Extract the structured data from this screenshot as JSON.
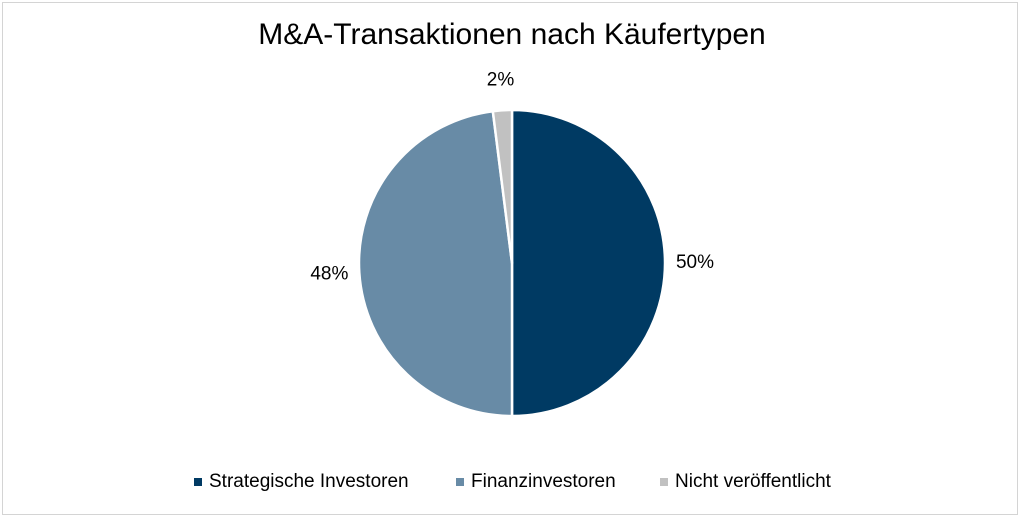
{
  "chart_data": {
    "type": "pie",
    "title": "M&A-Transaktionen nach Käufertypen",
    "categories": [
      "Strategische Investoren",
      "Finanzinvestoren",
      "Nicht veröffentlicht"
    ],
    "values": [
      50,
      48,
      2
    ],
    "labels": [
      "50%",
      "48%",
      "2%"
    ],
    "colors": [
      "#003a63",
      "#688ba6",
      "#c1c1c1"
    ],
    "legend_position": "bottom"
  }
}
